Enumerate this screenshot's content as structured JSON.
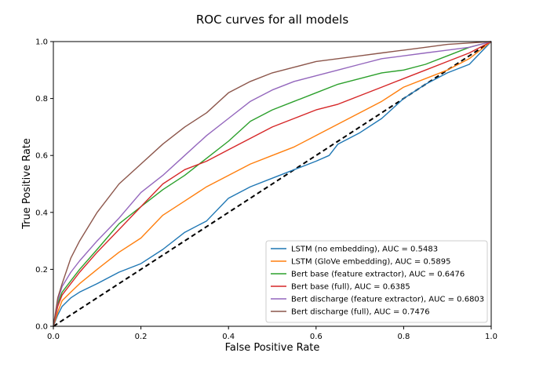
{
  "chart_data": {
    "type": "line",
    "title": "ROC curves for all models",
    "xlabel": "False Positive Rate",
    "ylabel": "True Positive Rate",
    "xlim": [
      0.0,
      1.0
    ],
    "ylim": [
      0.0,
      1.0
    ],
    "xticks": [
      "0.0",
      "0.2",
      "0.4",
      "0.6",
      "0.8",
      "1.0"
    ],
    "yticks": [
      "0.0",
      "0.2",
      "0.4",
      "0.6",
      "0.8",
      "1.0"
    ],
    "grid": false,
    "legend_position": "lower right",
    "diagonal": {
      "points": [
        [
          0,
          0
        ],
        [
          1,
          1
        ]
      ],
      "color": "#000000",
      "style": "dashed"
    },
    "series": [
      {
        "name": "LSTM (no embedding), AUC = 0.5483",
        "color": "#1f77b4",
        "points": [
          [
            0,
            0
          ],
          [
            0.01,
            0.04
          ],
          [
            0.02,
            0.07
          ],
          [
            0.04,
            0.1
          ],
          [
            0.06,
            0.12
          ],
          [
            0.1,
            0.15
          ],
          [
            0.15,
            0.19
          ],
          [
            0.2,
            0.22
          ],
          [
            0.25,
            0.27
          ],
          [
            0.3,
            0.33
          ],
          [
            0.35,
            0.37
          ],
          [
            0.4,
            0.45
          ],
          [
            0.45,
            0.49
          ],
          [
            0.5,
            0.52
          ],
          [
            0.55,
            0.55
          ],
          [
            0.6,
            0.58
          ],
          [
            0.63,
            0.6
          ],
          [
            0.65,
            0.64
          ],
          [
            0.7,
            0.68
          ],
          [
            0.75,
            0.73
          ],
          [
            0.8,
            0.8
          ],
          [
            0.85,
            0.85
          ],
          [
            0.9,
            0.89
          ],
          [
            0.95,
            0.92
          ],
          [
            1,
            1
          ]
        ]
      },
      {
        "name": "LSTM (GloVe embedding), AUC = 0.5895",
        "color": "#ff7f0e",
        "points": [
          [
            0,
            0
          ],
          [
            0.01,
            0.05
          ],
          [
            0.02,
            0.09
          ],
          [
            0.04,
            0.12
          ],
          [
            0.06,
            0.15
          ],
          [
            0.1,
            0.2
          ],
          [
            0.15,
            0.26
          ],
          [
            0.2,
            0.31
          ],
          [
            0.25,
            0.39
          ],
          [
            0.3,
            0.44
          ],
          [
            0.35,
            0.49
          ],
          [
            0.4,
            0.53
          ],
          [
            0.45,
            0.57
          ],
          [
            0.5,
            0.6
          ],
          [
            0.55,
            0.63
          ],
          [
            0.6,
            0.67
          ],
          [
            0.65,
            0.71
          ],
          [
            0.7,
            0.75
          ],
          [
            0.75,
            0.79
          ],
          [
            0.8,
            0.84
          ],
          [
            0.85,
            0.87
          ],
          [
            0.9,
            0.9
          ],
          [
            0.95,
            0.94
          ],
          [
            1,
            1
          ]
        ]
      },
      {
        "name": "Bert base (feature extractor), AUC = 0.6476",
        "color": "#2ca02c",
        "points": [
          [
            0,
            0
          ],
          [
            0.01,
            0.08
          ],
          [
            0.02,
            0.12
          ],
          [
            0.04,
            0.16
          ],
          [
            0.06,
            0.2
          ],
          [
            0.1,
            0.27
          ],
          [
            0.15,
            0.36
          ],
          [
            0.2,
            0.42
          ],
          [
            0.25,
            0.48
          ],
          [
            0.3,
            0.53
          ],
          [
            0.35,
            0.59
          ],
          [
            0.4,
            0.65
          ],
          [
            0.45,
            0.72
          ],
          [
            0.5,
            0.76
          ],
          [
            0.55,
            0.79
          ],
          [
            0.6,
            0.82
          ],
          [
            0.65,
            0.85
          ],
          [
            0.7,
            0.87
          ],
          [
            0.75,
            0.89
          ],
          [
            0.8,
            0.9
          ],
          [
            0.85,
            0.92
          ],
          [
            0.9,
            0.95
          ],
          [
            0.95,
            0.98
          ],
          [
            1,
            1
          ]
        ]
      },
      {
        "name": "Bert base (full), AUC = 0.6385",
        "color": "#d62728",
        "points": [
          [
            0,
            0
          ],
          [
            0.01,
            0.07
          ],
          [
            0.02,
            0.11
          ],
          [
            0.04,
            0.15
          ],
          [
            0.06,
            0.19
          ],
          [
            0.1,
            0.26
          ],
          [
            0.15,
            0.34
          ],
          [
            0.2,
            0.42
          ],
          [
            0.25,
            0.5
          ],
          [
            0.3,
            0.55
          ],
          [
            0.35,
            0.58
          ],
          [
            0.4,
            0.62
          ],
          [
            0.45,
            0.66
          ],
          [
            0.5,
            0.7
          ],
          [
            0.55,
            0.73
          ],
          [
            0.6,
            0.76
          ],
          [
            0.65,
            0.78
          ],
          [
            0.7,
            0.81
          ],
          [
            0.75,
            0.84
          ],
          [
            0.8,
            0.87
          ],
          [
            0.85,
            0.9
          ],
          [
            0.9,
            0.93
          ],
          [
            0.95,
            0.96
          ],
          [
            1,
            1
          ]
        ]
      },
      {
        "name": "Bert discharge (feature extractor), AUC = 0.6803",
        "color": "#9467bd",
        "points": [
          [
            0,
            0
          ],
          [
            0.01,
            0.09
          ],
          [
            0.02,
            0.14
          ],
          [
            0.04,
            0.19
          ],
          [
            0.06,
            0.23
          ],
          [
            0.1,
            0.3
          ],
          [
            0.15,
            0.38
          ],
          [
            0.2,
            0.47
          ],
          [
            0.25,
            0.53
          ],
          [
            0.3,
            0.6
          ],
          [
            0.35,
            0.67
          ],
          [
            0.4,
            0.73
          ],
          [
            0.45,
            0.79
          ],
          [
            0.5,
            0.83
          ],
          [
            0.55,
            0.86
          ],
          [
            0.6,
            0.88
          ],
          [
            0.65,
            0.9
          ],
          [
            0.7,
            0.92
          ],
          [
            0.75,
            0.94
          ],
          [
            0.8,
            0.95
          ],
          [
            0.85,
            0.96
          ],
          [
            0.9,
            0.97
          ],
          [
            0.95,
            0.98
          ],
          [
            1,
            1
          ]
        ]
      },
      {
        "name": "Bert discharge (full), AUC = 0.7476",
        "color": "#8c564b",
        "points": [
          [
            0,
            0
          ],
          [
            0.01,
            0.1
          ],
          [
            0.02,
            0.15
          ],
          [
            0.04,
            0.24
          ],
          [
            0.06,
            0.3
          ],
          [
            0.1,
            0.4
          ],
          [
            0.15,
            0.5
          ],
          [
            0.2,
            0.57
          ],
          [
            0.25,
            0.64
          ],
          [
            0.3,
            0.7
          ],
          [
            0.35,
            0.75
          ],
          [
            0.4,
            0.82
          ],
          [
            0.45,
            0.86
          ],
          [
            0.5,
            0.89
          ],
          [
            0.55,
            0.91
          ],
          [
            0.6,
            0.93
          ],
          [
            0.65,
            0.94
          ],
          [
            0.7,
            0.95
          ],
          [
            0.75,
            0.96
          ],
          [
            0.8,
            0.97
          ],
          [
            0.85,
            0.98
          ],
          [
            0.9,
            0.99
          ],
          [
            0.95,
            0.995
          ],
          [
            1,
            1
          ]
        ]
      }
    ]
  }
}
